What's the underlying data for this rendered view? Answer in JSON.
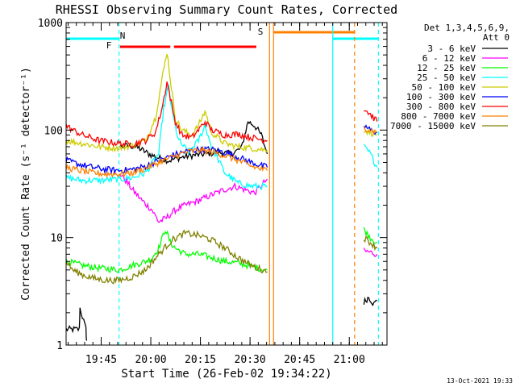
{
  "chart_data": {
    "type": "line",
    "title": "RHESSI Observing Summary Count Rates, Corrected",
    "xlabel": "Start Time (26-Feb-02 19:34:22)",
    "ylabel": "Corrected Count Rate (s⁻¹ detector⁻¹)",
    "yscale": "log",
    "ylim": [
      1,
      1000
    ],
    "xlim_minutes": [
      0,
      97
    ],
    "x_tick_labels": [
      "19:45",
      "20:00",
      "20:15",
      "20:30",
      "20:45",
      "21:00"
    ],
    "x_tick_minutes": [
      10.6,
      25.6,
      40.6,
      55.6,
      70.6,
      85.6
    ],
    "y_tick_labels": [
      "1",
      "10",
      "100",
      "1000"
    ],
    "y_tick_values": [
      1,
      10,
      100,
      1000
    ],
    "legend_header": [
      "Det 1,3,4,5,6,9,",
      "Att 0"
    ],
    "legend_position": "right",
    "footer_date": "13-Oct-2021 19:33",
    "flag_labels": {
      "night": "N",
      "flare": "F",
      "saa": "S"
    },
    "flags": {
      "night": {
        "color": "#00ffff",
        "segments_minutes": [
          [
            0,
            16.2
          ],
          [
            80.6,
            94.4
          ]
        ]
      },
      "flare": {
        "color": "#ff0000",
        "segments_minutes": [
          [
            16.3,
            31.5
          ],
          [
            32.6,
            57.5
          ]
        ]
      },
      "saa": {
        "color": "#ff8000",
        "segments_minutes": [
          [
            62.7,
            87.2
          ]
        ]
      }
    },
    "vlines": [
      {
        "minute": 16.0,
        "color": "#00ffff",
        "style": "dashed"
      },
      {
        "minute": 61.5,
        "color": "#ff8000",
        "style": "solid"
      },
      {
        "minute": 62.7,
        "color": "#ff8000",
        "style": "solid"
      },
      {
        "minute": 80.6,
        "color": "#00ffff",
        "style": "solid"
      },
      {
        "minute": 87.2,
        "color": "#ff8000",
        "style": "dashed"
      },
      {
        "minute": 94.4,
        "color": "#00ffff",
        "style": "dashed"
      }
    ],
    "series": [
      {
        "name": "3 - 6 keV",
        "color": "#000000",
        "segments": [
          {
            "x": [
              0,
              4,
              4.2,
              6,
              6.2
            ],
            "y": [
              1.4,
              1.4,
              2.2,
              1.4,
              1.1
            ]
          },
          {
            "x": [
              16.2,
              19,
              22,
              25,
              28,
              31,
              34,
              38,
              42,
              46,
              50,
              53,
              55,
              57,
              59,
              60.8
            ],
            "y": [
              70,
              72,
              68,
              60,
              55,
              52,
              55,
              58,
              60,
              62,
              60,
              68,
              120,
              110,
              90,
              60
            ]
          },
          {
            "x": [
              90,
              91.5,
              93,
              94
            ],
            "y": [
              2.5,
              2.8,
              2.4,
              2.6
            ]
          }
        ]
      },
      {
        "name": "6 - 12 keV",
        "color": "#ff00ff",
        "segments": [
          {
            "x": [
              16.2,
              18,
              20,
              23,
              26,
              28,
              30,
              33,
              36,
              40,
              44,
              48,
              51,
              54,
              57,
              60.8
            ],
            "y": [
              40,
              34,
              28,
              22,
              18,
              14,
              15,
              18,
              20,
              22,
              25,
              28,
              30,
              28,
              26,
              35
            ]
          },
          {
            "x": [
              90,
              92,
              94
            ],
            "y": [
              7.5,
              7.3,
              7.0
            ]
          }
        ]
      },
      {
        "name": "12 - 25 keV",
        "color": "#00ff00",
        "segments": [
          {
            "x": [
              0,
              5,
              10,
              16,
              20,
              24,
              26,
              28,
              30,
              31.5,
              33,
              36,
              40,
              44,
              48,
              52,
              55,
              58,
              60.8
            ],
            "y": [
              6,
              5.5,
              5.2,
              5,
              5.5,
              6,
              6.5,
              8,
              12,
              9,
              8,
              7,
              7,
              6.5,
              6,
              5.8,
              5.5,
              5.2,
              5
            ]
          },
          {
            "x": [
              90,
              92,
              94
            ],
            "y": [
              12,
              10,
              9
            ]
          }
        ]
      },
      {
        "name": "25 - 50 keV",
        "color": "#00ffff",
        "segments": [
          {
            "x": [
              0,
              5,
              10,
              16,
              20,
              24,
              28,
              29.5,
              31,
              32,
              34,
              37,
              40,
              42,
              44,
              48,
              52,
              56,
              60.8
            ],
            "y": [
              36,
              34,
              34,
              35,
              36,
              40,
              60,
              160,
              260,
              150,
              80,
              62,
              80,
              110,
              70,
              40,
              32,
              30,
              30
            ]
          },
          {
            "x": [
              90,
              92,
              94
            ],
            "y": [
              70,
              60,
              45
            ]
          }
        ]
      },
      {
        "name": "50 - 100 keV",
        "color": "#cccc00",
        "segments": [
          {
            "x": [
              0,
              5,
              10,
              16,
              20,
              24,
              27,
              29,
              30.5,
              31.5,
              33,
              35,
              38,
              40,
              42,
              44,
              48,
              52,
              56,
              60.8
            ],
            "y": [
              80,
              75,
              70,
              68,
              72,
              80,
              130,
              300,
              540,
              300,
              130,
              100,
              90,
              110,
              150,
              95,
              75,
              70,
              68,
              65
            ]
          },
          {
            "x": [
              90,
              92,
              94
            ],
            "y": [
              100,
              95,
              90
            ]
          }
        ]
      },
      {
        "name": "100 - 300 keV",
        "color": "#0000ff",
        "segments": [
          {
            "x": [
              0,
              4,
              8,
              12,
              16,
              20,
              24,
              28,
              32,
              36,
              40,
              44,
              48,
              52,
              56,
              60.8
            ],
            "y": [
              52,
              48,
              45,
              43,
              42,
              43,
              46,
              52,
              58,
              63,
              66,
              66,
              62,
              56,
              50,
              45
            ]
          },
          {
            "x": [
              90,
              92,
              94
            ],
            "y": [
              110,
              100,
              95
            ]
          }
        ]
      },
      {
        "name": "300 - 800 keV",
        "color": "#ff0000",
        "segments": [
          {
            "x": [
              0,
              2,
              5,
              10,
              16,
              20,
              24,
              27,
              29,
              30.5,
              31.5,
              33,
              35,
              38,
              40,
              42,
              44,
              48,
              52,
              56,
              60.8
            ],
            "y": [
              110,
              100,
              90,
              80,
              75,
              74,
              80,
              95,
              160,
              280,
              200,
              120,
              90,
              85,
              100,
              120,
              100,
              90,
              92,
              85,
              80
            ]
          },
          {
            "x": [
              90,
              92,
              94
            ],
            "y": [
              160,
              140,
              120
            ]
          }
        ]
      },
      {
        "name": "800 - 7000 keV",
        "color": "#ff8000",
        "segments": [
          {
            "x": [
              0,
              4,
              8,
              12,
              16,
              20,
              24,
              28,
              32,
              36,
              40,
              44,
              48,
              52,
              56,
              60.8
            ],
            "y": [
              45,
              42,
              40,
              39,
              39,
              40,
              44,
              50,
              56,
              62,
              65,
              63,
              58,
              52,
              46,
              42
            ]
          },
          {
            "x": [
              90,
              92,
              94
            ],
            "y": [
              105,
              100,
              95
            ]
          }
        ]
      },
      {
        "name": "7000 - 15000 keV",
        "color": "#808000",
        "segments": [
          {
            "x": [
              0,
              2,
              5,
              8,
              12,
              16,
              20,
              24,
              28,
              32,
              36,
              40,
              44,
              48,
              52,
              56,
              60.8
            ],
            "y": [
              6,
              5,
              4.5,
              4.2,
              4,
              4,
              4.3,
              5,
              7,
              9.5,
              11,
              10.5,
              9.5,
              8,
              6.5,
              5.5,
              4.8
            ]
          },
          {
            "x": [
              90,
              92,
              94
            ],
            "y": [
              10,
              9,
              8
            ]
          }
        ]
      }
    ]
  }
}
